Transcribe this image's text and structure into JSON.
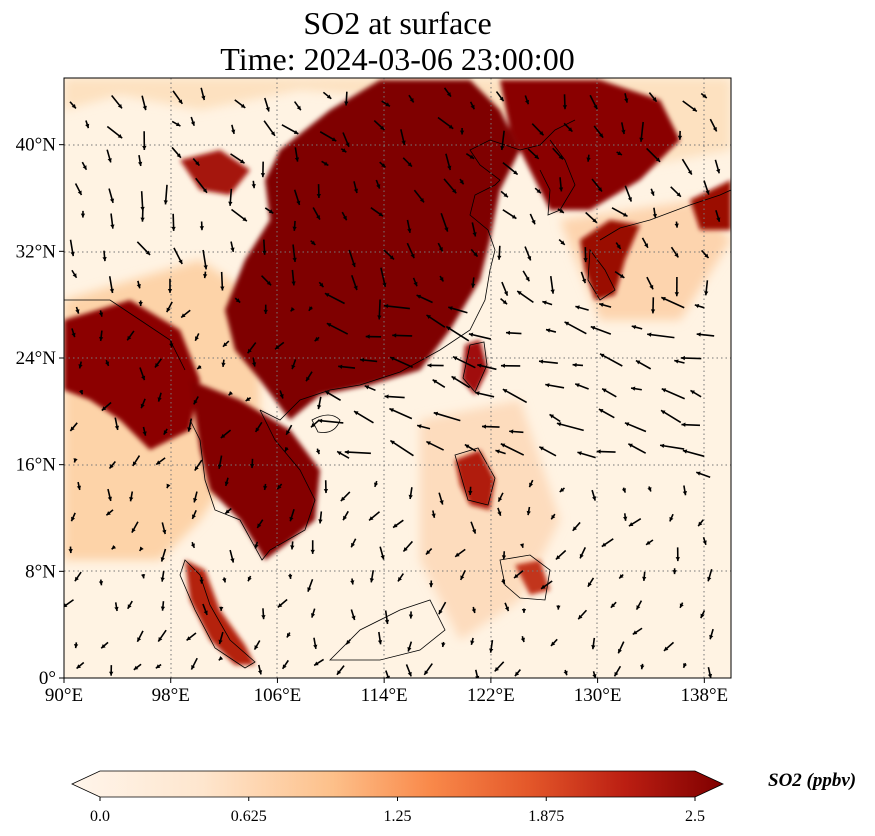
{
  "title": {
    "line1": "SO2 at surface",
    "line2": "Time: 2024-03-06 23:00:00"
  },
  "map": {
    "lon_range": [
      90,
      140
    ],
    "lat_range": [
      0,
      45
    ],
    "x_ticks": [
      {
        "value": 90,
        "label": "90°E"
      },
      {
        "value": 98,
        "label": "98°E"
      },
      {
        "value": 106,
        "label": "106°E"
      },
      {
        "value": 114,
        "label": "114°E"
      },
      {
        "value": 122,
        "label": "122°E"
      },
      {
        "value": 130,
        "label": "130°E"
      },
      {
        "value": 138,
        "label": "138°E"
      }
    ],
    "y_ticks": [
      {
        "value": 0,
        "label": "0°"
      },
      {
        "value": 8,
        "label": "8°N"
      },
      {
        "value": 16,
        "label": "16°N"
      },
      {
        "value": 24,
        "label": "24°N"
      },
      {
        "value": 32,
        "label": "32°N"
      },
      {
        "value": 40,
        "label": "40°N"
      }
    ],
    "grid": true
  },
  "colorbar": {
    "label": "SO2 (ppbv)",
    "ticks": [
      {
        "value": 0.0,
        "label": "0.0"
      },
      {
        "value": 0.625,
        "label": "0.625"
      },
      {
        "value": 1.25,
        "label": "1.25"
      },
      {
        "value": 1.875,
        "label": "1.875"
      },
      {
        "value": 2.5,
        "label": "2.5"
      }
    ],
    "range": [
      0,
      2.5
    ],
    "colormap_stops": [
      "#fff5eb",
      "#fdd9b4",
      "#fda762",
      "#f3701b",
      "#c54102",
      "#7f2704"
    ],
    "extend": "both"
  },
  "colors": {
    "low": "#fff5eb",
    "high": "#7f0000",
    "coast": "#000000",
    "grid": "#777777"
  }
}
